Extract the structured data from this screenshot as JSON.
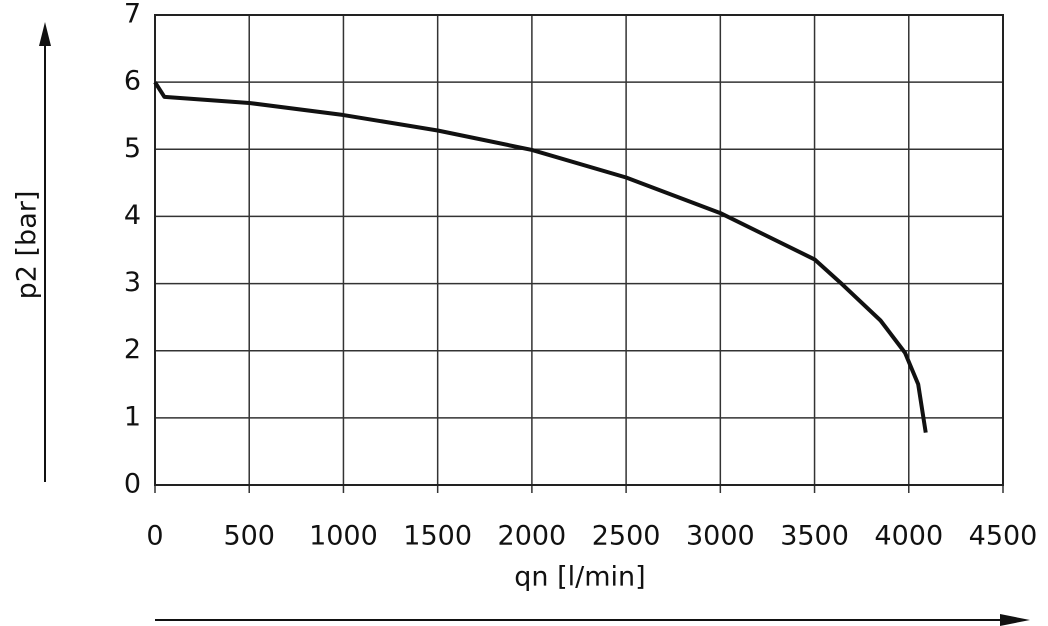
{
  "chart_data": {
    "type": "line",
    "x_label": "qn [l/min]",
    "y_label": "p2 [bar]",
    "series": [
      {
        "color": "#111111",
        "x": [
          0,
          50,
          500,
          1000,
          1500,
          2000,
          2500,
          3000,
          3500,
          3650,
          3850,
          3980,
          4050,
          4090
        ],
        "values": [
          6.0,
          5.78,
          5.69,
          5.51,
          5.28,
          4.99,
          4.58,
          4.05,
          3.36,
          2.98,
          2.45,
          1.97,
          1.5,
          0.78
        ]
      }
    ],
    "xlim": [
      0,
      4500
    ],
    "xticks": [
      0,
      500,
      1000,
      1500,
      2000,
      2500,
      3000,
      3500,
      4000,
      4500
    ],
    "ylim": [
      0,
      7
    ],
    "yticks": [
      0,
      1,
      2,
      3,
      4,
      5,
      6,
      7
    ],
    "grid": true
  }
}
